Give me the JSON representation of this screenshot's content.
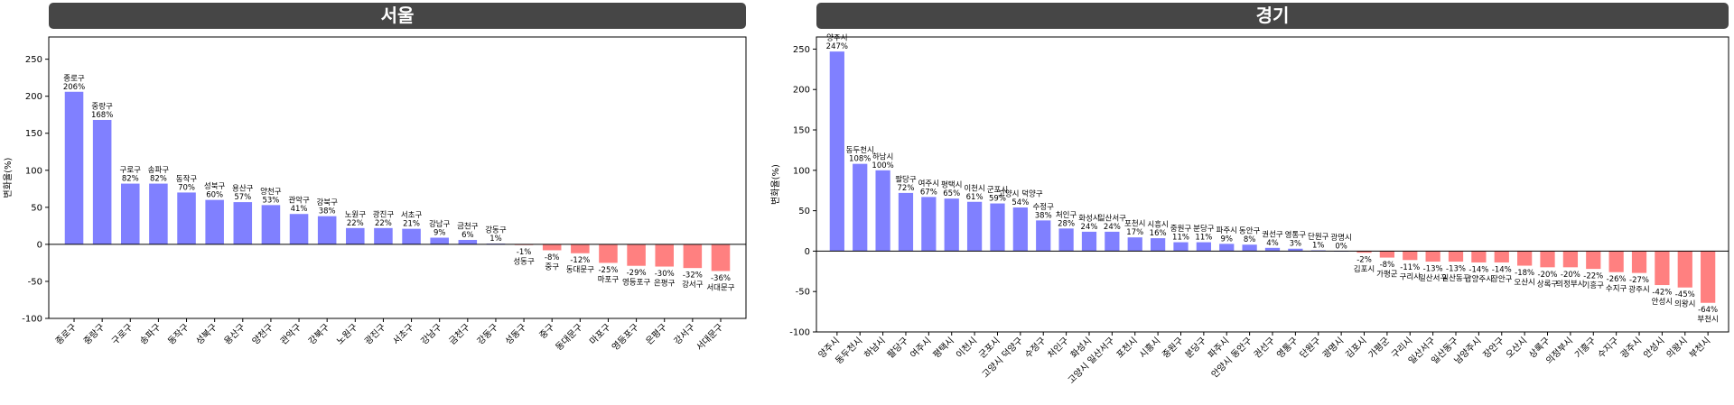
{
  "colors": {
    "positive": "#8080ff",
    "negative": "#ff8080",
    "title_bar": "#464646",
    "zero_line": "#000000"
  },
  "chart_data": [
    {
      "type": "bar",
      "title": "서울",
      "ylabel": "변화율(%)",
      "ylim": [
        -100,
        280
      ],
      "yticks": [
        -100,
        -50,
        0,
        50,
        100,
        150,
        200,
        250
      ],
      "categories": [
        "종로구",
        "중랑구",
        "구로구",
        "송파구",
        "동작구",
        "성북구",
        "용산구",
        "양천구",
        "관악구",
        "강북구",
        "노원구",
        "광진구",
        "서초구",
        "강남구",
        "금천구",
        "강동구",
        "성동구",
        "중구",
        "동대문구",
        "마포구",
        "영등포구",
        "은평구",
        "강서구",
        "서대문구"
      ],
      "values": [
        206,
        168,
        82,
        82,
        70,
        60,
        57,
        53,
        41,
        38,
        22,
        22,
        21,
        9,
        6,
        1,
        -1,
        -8,
        -12,
        -25,
        -29,
        -30,
        -32,
        -36
      ]
    },
    {
      "type": "bar",
      "title": "경기",
      "ylabel": "변화율(%)",
      "ylim": [
        -100,
        265
      ],
      "yticks": [
        -100,
        -50,
        0,
        50,
        100,
        150,
        200,
        250
      ],
      "categories": [
        "양주시",
        "동두천시",
        "하남시",
        "팔당구",
        "여주시",
        "평택시",
        "이천시",
        "군포시",
        "고양시 덕양구",
        "수정구",
        "처인구",
        "화성시",
        "고양시 일산서구",
        "포천시",
        "시흥시",
        "중원구",
        "분당구",
        "파주시",
        "안양시 동안구",
        "권선구",
        "영통구",
        "단원구",
        "광명시",
        "김포시",
        "가평군",
        "구리시",
        "일산서구",
        "일산동구",
        "남양주시",
        "장안구",
        "오산시",
        "상록구",
        "의정부시",
        "기흥구",
        "수지구",
        "광주시",
        "안성시",
        "의왕시",
        "부천시"
      ],
      "values": [
        247,
        108,
        100,
        72,
        67,
        65,
        61,
        59,
        54,
        38,
        28,
        24,
        24,
        17,
        16,
        11,
        11,
        9,
        8,
        4,
        3,
        1,
        0,
        -2,
        -8,
        -11,
        -13,
        -13,
        -14,
        -14,
        -18,
        -20,
        -20,
        -22,
        -26,
        -27,
        -42,
        -45,
        -64
      ],
      "labels": [
        [
          "양주시",
          "247%"
        ],
        [
          "동두천시",
          "108%"
        ],
        [
          "하남시",
          "100%"
        ],
        [
          "팔당구",
          "72%"
        ],
        [
          "여주시",
          "67%"
        ],
        [
          "평택시",
          "65%"
        ],
        [
          "이천시",
          "61%"
        ],
        [
          "군포시",
          "59%"
        ],
        [
          "고양시 덕양구",
          "54%"
        ],
        [
          "수정구",
          "38%"
        ],
        [
          "처인구",
          "28%"
        ],
        [
          "화성시",
          "24%"
        ],
        [
          "일산서구",
          "24%"
        ],
        [
          "포천시",
          "17%"
        ],
        [
          "시흥시",
          "16%"
        ],
        [
          "중원구",
          "11%"
        ],
        [
          "분당구",
          "11%"
        ],
        [
          "파주시",
          "9%"
        ],
        [
          "동안구",
          "8%"
        ],
        [
          "권선구",
          "4%"
        ],
        [
          "영통구",
          "3%"
        ],
        [
          "단원구",
          "1%"
        ],
        [
          "광명시",
          "0%"
        ],
        [
          "-2%",
          "김포시"
        ],
        [
          "-8%",
          "가평군"
        ],
        [
          "-11%",
          "구리시"
        ],
        [
          "-13%",
          "일산서구"
        ],
        [
          "-13%",
          "일산동구"
        ],
        [
          "-14%",
          "남양주시"
        ],
        [
          "-14%",
          "장안구"
        ],
        [
          "-18%",
          "오산시"
        ],
        [
          "-20%",
          "상록구"
        ],
        [
          "-20%",
          "의정부시"
        ],
        [
          "-22%",
          "기흥구"
        ],
        [
          "-26%",
          "수지구"
        ],
        [
          "-27%",
          "광주시"
        ],
        [
          "-42%",
          "안성시"
        ],
        [
          "-45%",
          "의왕시"
        ],
        [
          "-64%",
          "부천시"
        ]
      ]
    }
  ]
}
